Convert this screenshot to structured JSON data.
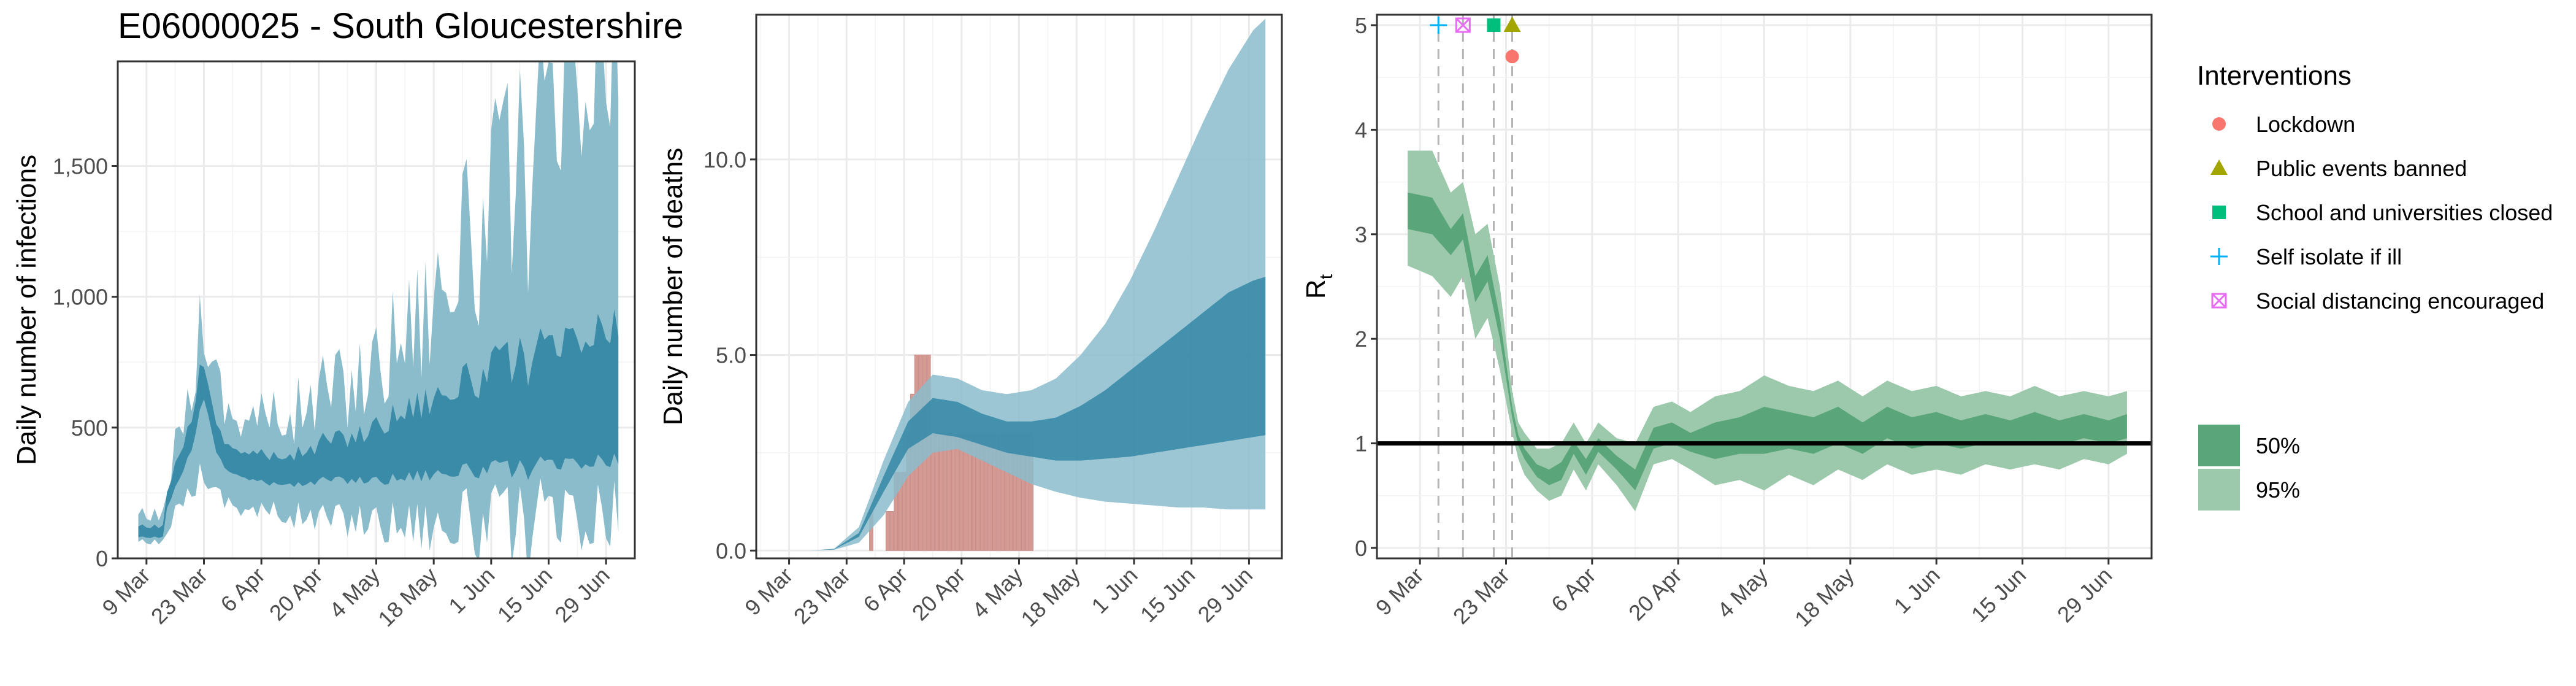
{
  "figure": {
    "title": "E06000025 - South Gloucestershire"
  },
  "colors": {
    "infections_95": "#8bbccc",
    "infections_50": "#3a8ba8",
    "deaths_95": "#8bbccc",
    "deaths_50": "#3a8ba8",
    "deaths_bar": "#d49a93",
    "rt_95": "#9cc9ac",
    "rt_50": "#5aa57a",
    "grid": "#ebebeb",
    "axis_text": "#4d4d4d",
    "lockdown": "#f8766d",
    "public_events": "#a3a500",
    "schools": "#00bf7d",
    "self_isolate": "#00b0f6",
    "social_distancing": "#e76bf3"
  },
  "chart_data": [
    {
      "type": "area",
      "id": "infections",
      "ylabel": "Daily number of infections",
      "xlabel": "",
      "x_ticks": [
        "9 Mar",
        "23 Mar",
        "6 Apr",
        "20 Apr",
        "4 May",
        "18 May",
        "1 Jun",
        "15 Jun",
        "29 Jun"
      ],
      "x_range": [
        "2020-03-02",
        "2020-07-06"
      ],
      "ylim": [
        0,
        1900
      ],
      "y_ticks": [
        0,
        500,
        1000,
        1500
      ],
      "y_tick_labels": [
        "0",
        "500",
        "1,000",
        "1,500"
      ],
      "series": [
        {
          "name": "95%",
          "x": [
            "2020-03-07",
            "2020-03-13",
            "2020-03-14",
            "2020-03-17",
            "2020-03-20",
            "2020-03-22",
            "2020-03-23",
            "2020-03-24",
            "2020-03-26",
            "2020-03-29",
            "2020-04-01",
            "2020-04-03",
            "2020-04-05",
            "2020-04-08",
            "2020-04-12",
            "2020-04-15",
            "2020-04-19",
            "2020-04-21",
            "2020-04-26",
            "2020-05-01",
            "2020-05-05",
            "2020-05-10",
            "2020-05-15",
            "2020-05-20",
            "2020-05-25",
            "2020-05-30",
            "2020-06-04",
            "2020-06-09",
            "2020-06-14",
            "2020-06-19",
            "2020-06-24",
            "2020-06-29",
            "2020-07-02"
          ],
          "lower": [
            60,
            60,
            120,
            200,
            270,
            320,
            360,
            320,
            240,
            220,
            200,
            190,
            180,
            175,
            170,
            160,
            155,
            150,
            150,
            150,
            145,
            140,
            140,
            135,
            130,
            125,
            120,
            115,
            110,
            110,
            105,
            100,
            100
          ],
          "upper": [
            160,
            160,
            310,
            480,
            650,
            900,
            960,
            870,
            680,
            560,
            560,
            540,
            560,
            520,
            560,
            560,
            600,
            640,
            660,
            700,
            780,
            880,
            950,
            1100,
            1160,
            1260,
            1420,
            1480,
            1560,
            1620,
            1750,
            1800,
            1760
          ]
        },
        {
          "name": "50%",
          "x": [
            "2020-03-07",
            "2020-03-13",
            "2020-03-14",
            "2020-03-17",
            "2020-03-20",
            "2020-03-22",
            "2020-03-23",
            "2020-03-24",
            "2020-03-26",
            "2020-03-29",
            "2020-04-01",
            "2020-04-03",
            "2020-04-05",
            "2020-04-08",
            "2020-04-12",
            "2020-04-15",
            "2020-04-19",
            "2020-04-21",
            "2020-04-26",
            "2020-05-01",
            "2020-05-05",
            "2020-05-10",
            "2020-05-15",
            "2020-05-20",
            "2020-05-25",
            "2020-05-30",
            "2020-06-04",
            "2020-06-09",
            "2020-06-14",
            "2020-06-19",
            "2020-06-24",
            "2020-06-29",
            "2020-07-02"
          ],
          "lower": [
            80,
            80,
            200,
            300,
            420,
            560,
            620,
            560,
            400,
            330,
            320,
            300,
            300,
            280,
            290,
            280,
            290,
            300,
            300,
            300,
            300,
            310,
            320,
            330,
            330,
            340,
            340,
            340,
            350,
            350,
            360,
            360,
            360
          ],
          "upper": [
            120,
            120,
            270,
            390,
            540,
            720,
            760,
            690,
            500,
            430,
            420,
            400,
            410,
            380,
            400,
            400,
            420,
            450,
            460,
            480,
            520,
            560,
            600,
            640,
            660,
            700,
            740,
            760,
            780,
            800,
            830,
            850,
            850
          ]
        }
      ]
    },
    {
      "type": "area",
      "id": "deaths",
      "ylabel": "Daily number of deaths",
      "xlabel": "",
      "x_ticks": [
        "9 Mar",
        "23 Mar",
        "6 Apr",
        "20 Apr",
        "4 May",
        "18 May",
        "1 Jun",
        "15 Jun",
        "29 Jun"
      ],
      "x_range": [
        "2020-03-01",
        "2020-07-07"
      ],
      "ylim": [
        -0.2,
        13.7
      ],
      "y_ticks": [
        0,
        5,
        10
      ],
      "y_tick_labels": [
        "0.0",
        "5.0",
        "10.0"
      ],
      "series": [
        {
          "name": "95%",
          "x": [
            "2020-03-14",
            "2020-03-20",
            "2020-03-26",
            "2020-04-01",
            "2020-04-07",
            "2020-04-13",
            "2020-04-19",
            "2020-04-25",
            "2020-05-01",
            "2020-05-07",
            "2020-05-13",
            "2020-05-19",
            "2020-05-25",
            "2020-05-31",
            "2020-06-06",
            "2020-06-12",
            "2020-06-18",
            "2020-06-24",
            "2020-06-30",
            "2020-07-03"
          ],
          "lower": [
            0,
            0.02,
            0.2,
            0.9,
            1.9,
            2.5,
            2.6,
            2.3,
            2.0,
            1.7,
            1.5,
            1.35,
            1.25,
            1.2,
            1.15,
            1.1,
            1.1,
            1.05,
            1.05,
            1.05
          ],
          "upper": [
            0,
            0.05,
            0.6,
            2.3,
            3.8,
            4.5,
            4.4,
            4.1,
            4.0,
            4.1,
            4.4,
            5.0,
            5.8,
            6.9,
            8.2,
            9.6,
            11.0,
            12.3,
            13.3,
            13.6
          ]
        },
        {
          "name": "50%",
          "x": [
            "2020-03-14",
            "2020-03-20",
            "2020-03-26",
            "2020-04-01",
            "2020-04-07",
            "2020-04-13",
            "2020-04-19",
            "2020-04-25",
            "2020-05-01",
            "2020-05-07",
            "2020-05-13",
            "2020-05-19",
            "2020-05-25",
            "2020-05-31",
            "2020-06-06",
            "2020-06-12",
            "2020-06-18",
            "2020-06-24",
            "2020-06-30",
            "2020-07-03"
          ],
          "lower": [
            0,
            0.03,
            0.35,
            1.5,
            2.6,
            3.0,
            2.9,
            2.7,
            2.5,
            2.4,
            2.3,
            2.3,
            2.35,
            2.4,
            2.5,
            2.6,
            2.7,
            2.8,
            2.9,
            2.95
          ],
          "upper": [
            0,
            0.04,
            0.45,
            1.9,
            3.3,
            3.9,
            3.8,
            3.5,
            3.3,
            3.3,
            3.4,
            3.7,
            4.1,
            4.6,
            5.1,
            5.6,
            6.1,
            6.6,
            6.9,
            7.0
          ]
        }
      ],
      "bars": {
        "name": "observed deaths",
        "x": [
          "2020-03-29",
          "2020-04-02",
          "2020-04-03",
          "2020-04-04",
          "2020-04-05",
          "2020-04-06",
          "2020-04-07",
          "2020-04-08",
          "2020-04-09",
          "2020-04-10",
          "2020-04-11",
          "2020-04-12",
          "2020-04-13",
          "2020-04-14",
          "2020-04-15",
          "2020-04-16",
          "2020-04-17",
          "2020-04-18",
          "2020-04-19",
          "2020-04-20",
          "2020-04-21",
          "2020-04-22",
          "2020-04-23",
          "2020-04-24",
          "2020-04-25",
          "2020-04-26",
          "2020-04-27",
          "2020-04-28",
          "2020-04-29",
          "2020-04-30",
          "2020-05-01",
          "2020-05-02",
          "2020-05-03",
          "2020-05-04",
          "2020-05-05",
          "2020-05-06",
          "2020-05-07"
        ],
        "values": [
          1,
          1,
          1,
          2,
          2,
          2,
          3,
          4,
          5,
          5,
          5,
          5,
          3,
          3,
          3,
          3,
          3,
          3,
          3,
          3,
          3,
          3,
          3,
          3,
          3,
          3,
          3,
          3,
          3,
          3,
          3,
          3,
          3,
          3,
          3,
          3,
          3
        ]
      }
    },
    {
      "type": "area",
      "id": "rt",
      "ylabel": "R",
      "ylabel_subscript": "t",
      "xlabel": "",
      "x_ticks": [
        "9 Mar",
        "23 Mar",
        "6 Apr",
        "20 Apr",
        "4 May",
        "18 May",
        "1 Jun",
        "15 Jun",
        "29 Jun"
      ],
      "x_range": [
        "2020-03-02",
        "2020-07-06"
      ],
      "ylim": [
        -0.1,
        5.1
      ],
      "y_ticks": [
        0,
        1,
        2,
        3,
        4,
        5
      ],
      "y_tick_labels": [
        "0",
        "1",
        "2",
        "3",
        "4",
        "5"
      ],
      "reference_line": 1,
      "intervention_lines": [
        "2020-03-12",
        "2020-03-16",
        "2020-03-21",
        "2020-03-24"
      ],
      "series": [
        {
          "name": "95%",
          "x": [
            "2020-03-07",
            "2020-03-11",
            "2020-03-14",
            "2020-03-16",
            "2020-03-18",
            "2020-03-20",
            "2020-03-22",
            "2020-03-24",
            "2020-03-25",
            "2020-03-26",
            "2020-03-28",
            "2020-03-30",
            "2020-04-01",
            "2020-04-03",
            "2020-04-05",
            "2020-04-07",
            "2020-04-10",
            "2020-04-13",
            "2020-04-16",
            "2020-04-19",
            "2020-04-22",
            "2020-04-26",
            "2020-04-30",
            "2020-05-04",
            "2020-05-08",
            "2020-05-12",
            "2020-05-16",
            "2020-05-20",
            "2020-05-24",
            "2020-05-28",
            "2020-06-01",
            "2020-06-05",
            "2020-06-09",
            "2020-06-13",
            "2020-06-17",
            "2020-06-21",
            "2020-06-25",
            "2020-06-29",
            "2020-07-02"
          ],
          "lower": [
            2.7,
            2.6,
            2.4,
            2.6,
            2.0,
            2.2,
            1.7,
            1.1,
            0.85,
            0.7,
            0.55,
            0.45,
            0.5,
            0.75,
            0.55,
            0.8,
            0.6,
            0.35,
            0.8,
            0.85,
            0.75,
            0.6,
            0.65,
            0.55,
            0.7,
            0.6,
            0.75,
            0.65,
            0.8,
            0.7,
            0.75,
            0.7,
            0.8,
            0.75,
            0.8,
            0.75,
            0.85,
            0.8,
            0.9
          ],
          "upper": [
            3.8,
            3.8,
            3.4,
            3.5,
            3.0,
            3.1,
            2.5,
            1.5,
            1.2,
            1.1,
            0.95,
            0.95,
            1.0,
            1.2,
            1.0,
            1.2,
            1.05,
            1.0,
            1.35,
            1.4,
            1.3,
            1.45,
            1.5,
            1.65,
            1.55,
            1.5,
            1.6,
            1.45,
            1.6,
            1.5,
            1.55,
            1.45,
            1.5,
            1.45,
            1.55,
            1.45,
            1.5,
            1.45,
            1.5
          ]
        },
        {
          "name": "50%",
          "x": [
            "2020-03-07",
            "2020-03-11",
            "2020-03-14",
            "2020-03-16",
            "2020-03-18",
            "2020-03-20",
            "2020-03-22",
            "2020-03-24",
            "2020-03-25",
            "2020-03-26",
            "2020-03-28",
            "2020-03-30",
            "2020-04-01",
            "2020-04-03",
            "2020-04-05",
            "2020-04-07",
            "2020-04-10",
            "2020-04-13",
            "2020-04-16",
            "2020-04-19",
            "2020-04-22",
            "2020-04-26",
            "2020-04-30",
            "2020-05-04",
            "2020-05-08",
            "2020-05-12",
            "2020-05-16",
            "2020-05-20",
            "2020-05-24",
            "2020-05-28",
            "2020-06-01",
            "2020-06-05",
            "2020-06-09",
            "2020-06-13",
            "2020-06-17",
            "2020-06-21",
            "2020-06-25",
            "2020-06-29",
            "2020-07-02"
          ],
          "lower": [
            3.05,
            3.0,
            2.8,
            2.95,
            2.35,
            2.55,
            2.0,
            1.25,
            0.98,
            0.85,
            0.68,
            0.6,
            0.65,
            0.9,
            0.7,
            0.92,
            0.75,
            0.55,
            0.95,
            1.0,
            0.92,
            0.85,
            0.9,
            0.9,
            0.95,
            0.9,
            1.0,
            0.9,
            1.05,
            0.95,
            1.0,
            0.95,
            1.0,
            0.98,
            1.02,
            0.98,
            1.05,
            1.0,
            1.05
          ],
          "upper": [
            3.4,
            3.35,
            3.05,
            3.2,
            2.6,
            2.8,
            2.2,
            1.35,
            1.08,
            0.95,
            0.8,
            0.75,
            0.82,
            1.02,
            0.85,
            1.05,
            0.88,
            0.75,
            1.15,
            1.2,
            1.1,
            1.2,
            1.25,
            1.35,
            1.3,
            1.25,
            1.35,
            1.2,
            1.35,
            1.25,
            1.3,
            1.22,
            1.28,
            1.22,
            1.3,
            1.22,
            1.28,
            1.22,
            1.28
          ]
        }
      ],
      "markers": [
        {
          "name": "Self isolate if ill",
          "x": "2020-03-12",
          "y": 5.0,
          "shape": "plus",
          "color_key": "self_isolate"
        },
        {
          "name": "Social distancing encouraged",
          "x": "2020-03-16",
          "y": 5.0,
          "shape": "square-x",
          "color_key": "social_distancing"
        },
        {
          "name": "School and universities closed",
          "x": "2020-03-21",
          "y": 5.0,
          "shape": "square",
          "color_key": "schools"
        },
        {
          "name": "Public events banned",
          "x": "2020-03-24",
          "y": 5.0,
          "shape": "triangle",
          "color_key": "public_events"
        },
        {
          "name": "Lockdown",
          "x": "2020-03-24",
          "y": 4.7,
          "shape": "circle",
          "color_key": "lockdown"
        }
      ]
    }
  ],
  "legend": {
    "interventions_title": "Interventions",
    "interventions": [
      {
        "label": "Lockdown",
        "shape": "circle",
        "color_key": "lockdown"
      },
      {
        "label": "Public events banned",
        "shape": "triangle",
        "color_key": "public_events"
      },
      {
        "label": "School and universities closed",
        "shape": "square",
        "color_key": "schools"
      },
      {
        "label": "Self isolate if ill",
        "shape": "plus",
        "color_key": "self_isolate"
      },
      {
        "label": "Social distancing encouraged",
        "shape": "square-x",
        "color_key": "social_distancing"
      }
    ],
    "intervals": [
      {
        "label": "50%",
        "color_key": "rt_50"
      },
      {
        "label": "95%",
        "color_key": "rt_95"
      }
    ]
  }
}
